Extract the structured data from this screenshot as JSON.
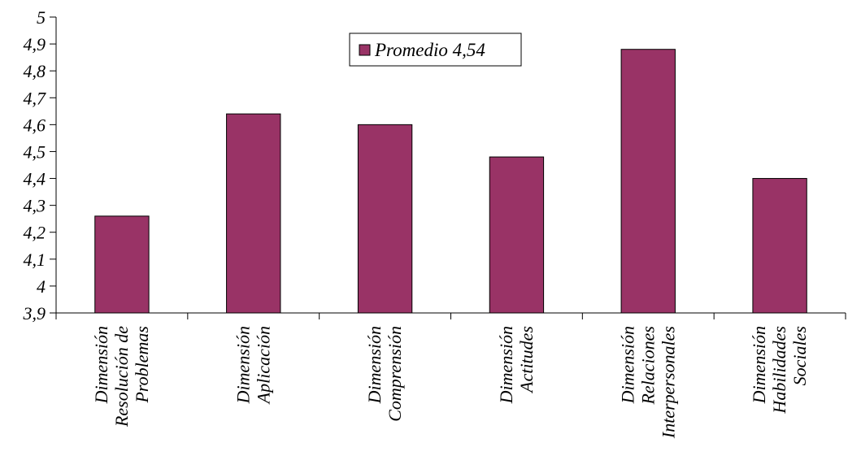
{
  "chart_data": {
    "type": "bar",
    "categories": [
      [
        "Dimensión",
        "Resolución de",
        "Problemas"
      ],
      [
        "Dimensión",
        "Aplicación"
      ],
      [
        "Dimensión",
        "Comprensión"
      ],
      [
        "Dimensión",
        "Actitudes"
      ],
      [
        "Dimensión",
        "Relaciones",
        "Interpersonales"
      ],
      [
        "Dimensión",
        "Habilidades",
        "Sociales"
      ]
    ],
    "series": [
      {
        "name": "Promedio 4,54",
        "values": [
          4.26,
          4.64,
          4.6,
          4.48,
          4.88,
          4.4
        ]
      }
    ],
    "ylim": [
      3.9,
      5.0
    ],
    "yticks": [
      "3,9",
      "4",
      "4,1",
      "4,2",
      "4,3",
      "4,4",
      "4,5",
      "4,6",
      "4,7",
      "4,8",
      "4,9",
      "5"
    ],
    "grid": false,
    "legend_position": "top-center",
    "title": "",
    "xlabel": "",
    "ylabel": "",
    "colors": {
      "bar": "#993366",
      "axis": "#000000",
      "background": "#ffffff"
    }
  }
}
